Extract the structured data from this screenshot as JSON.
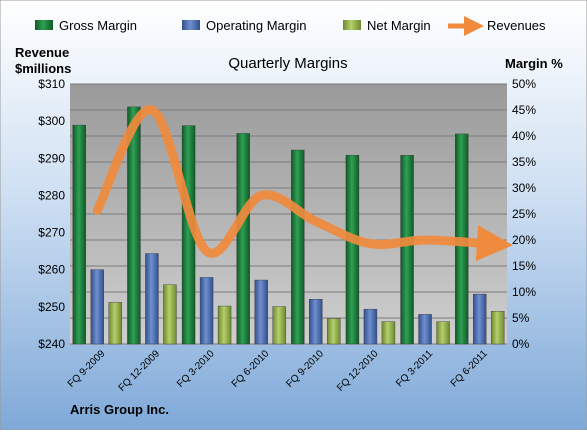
{
  "chart_data": {
    "type": "bar",
    "title": "Quarterly Margins",
    "caption": "Arris Group Inc.",
    "left_axis_label": [
      "Revenue",
      "$millions"
    ],
    "right_axis_label": "Margin %",
    "categories": [
      "FQ 9-2009",
      "FQ 12-2009",
      "FQ 3-2010",
      "FQ 6-2010",
      "FQ 9-2010",
      "FQ 12-2010",
      "FQ 3-2011",
      "FQ 6-2011"
    ],
    "left_axis": {
      "range": [
        240,
        310
      ],
      "ticks": [
        240,
        250,
        260,
        270,
        280,
        290,
        300,
        310
      ],
      "tick_labels": [
        "$240",
        "$250",
        "$260",
        "$270",
        "$280",
        "$290",
        "$300",
        "$310"
      ]
    },
    "right_axis": {
      "range": [
        0,
        50
      ],
      "ticks": [
        0,
        5,
        10,
        15,
        20,
        25,
        30,
        35,
        40,
        45,
        50
      ],
      "tick_labels": [
        "0%",
        "5%",
        "10%",
        "15%",
        "20%",
        "25%",
        "30%",
        "35%",
        "40%",
        "45%",
        "50%"
      ]
    },
    "grid": true,
    "legend_position": "top",
    "series": [
      {
        "name": "Gross Margin",
        "type": "bar",
        "axis": "right",
        "color": "#1f7a3a",
        "values": [
          42.1,
          45.6,
          42.0,
          40.5,
          37.3,
          36.3,
          36.3,
          40.4
        ]
      },
      {
        "name": "Operating Margin",
        "type": "bar",
        "axis": "right",
        "color": "#4f72b8",
        "values": [
          14.3,
          17.4,
          12.8,
          12.3,
          8.6,
          6.7,
          5.7,
          9.6
        ]
      },
      {
        "name": "Net Margin",
        "type": "bar",
        "axis": "right",
        "color": "#9bbb59",
        "values": [
          8.0,
          11.4,
          7.3,
          7.2,
          4.9,
          4.3,
          4.3,
          6.3
        ]
      },
      {
        "name": "Revenues",
        "type": "line",
        "axis": "left",
        "color": "#f08a3c",
        "values": [
          276,
          303,
          265,
          280,
          273,
          267,
          268,
          267
        ]
      }
    ]
  }
}
